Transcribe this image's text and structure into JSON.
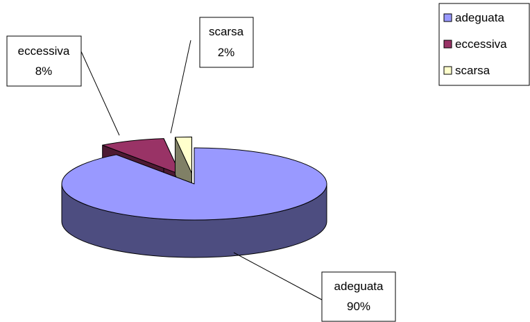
{
  "chart_data": {
    "type": "pie",
    "three_d": true,
    "title": "",
    "categories": [
      "adeguata",
      "eccessiva",
      "scarsa"
    ],
    "values": [
      90,
      8,
      2
    ],
    "labels": [
      {
        "name": "adeguata",
        "percent": "90%"
      },
      {
        "name": "eccessiva",
        "percent": "8%"
      },
      {
        "name": "scarsa",
        "percent": "2%"
      }
    ],
    "colors": [
      "#9999ff",
      "#993366",
      "#ffffcc"
    ],
    "side_colors": [
      "#4d4d80",
      "#4d1a33",
      "#808066"
    ],
    "legend": {
      "position": "top-right",
      "items": [
        "adeguata",
        "eccessiva",
        "scarsa"
      ]
    }
  }
}
